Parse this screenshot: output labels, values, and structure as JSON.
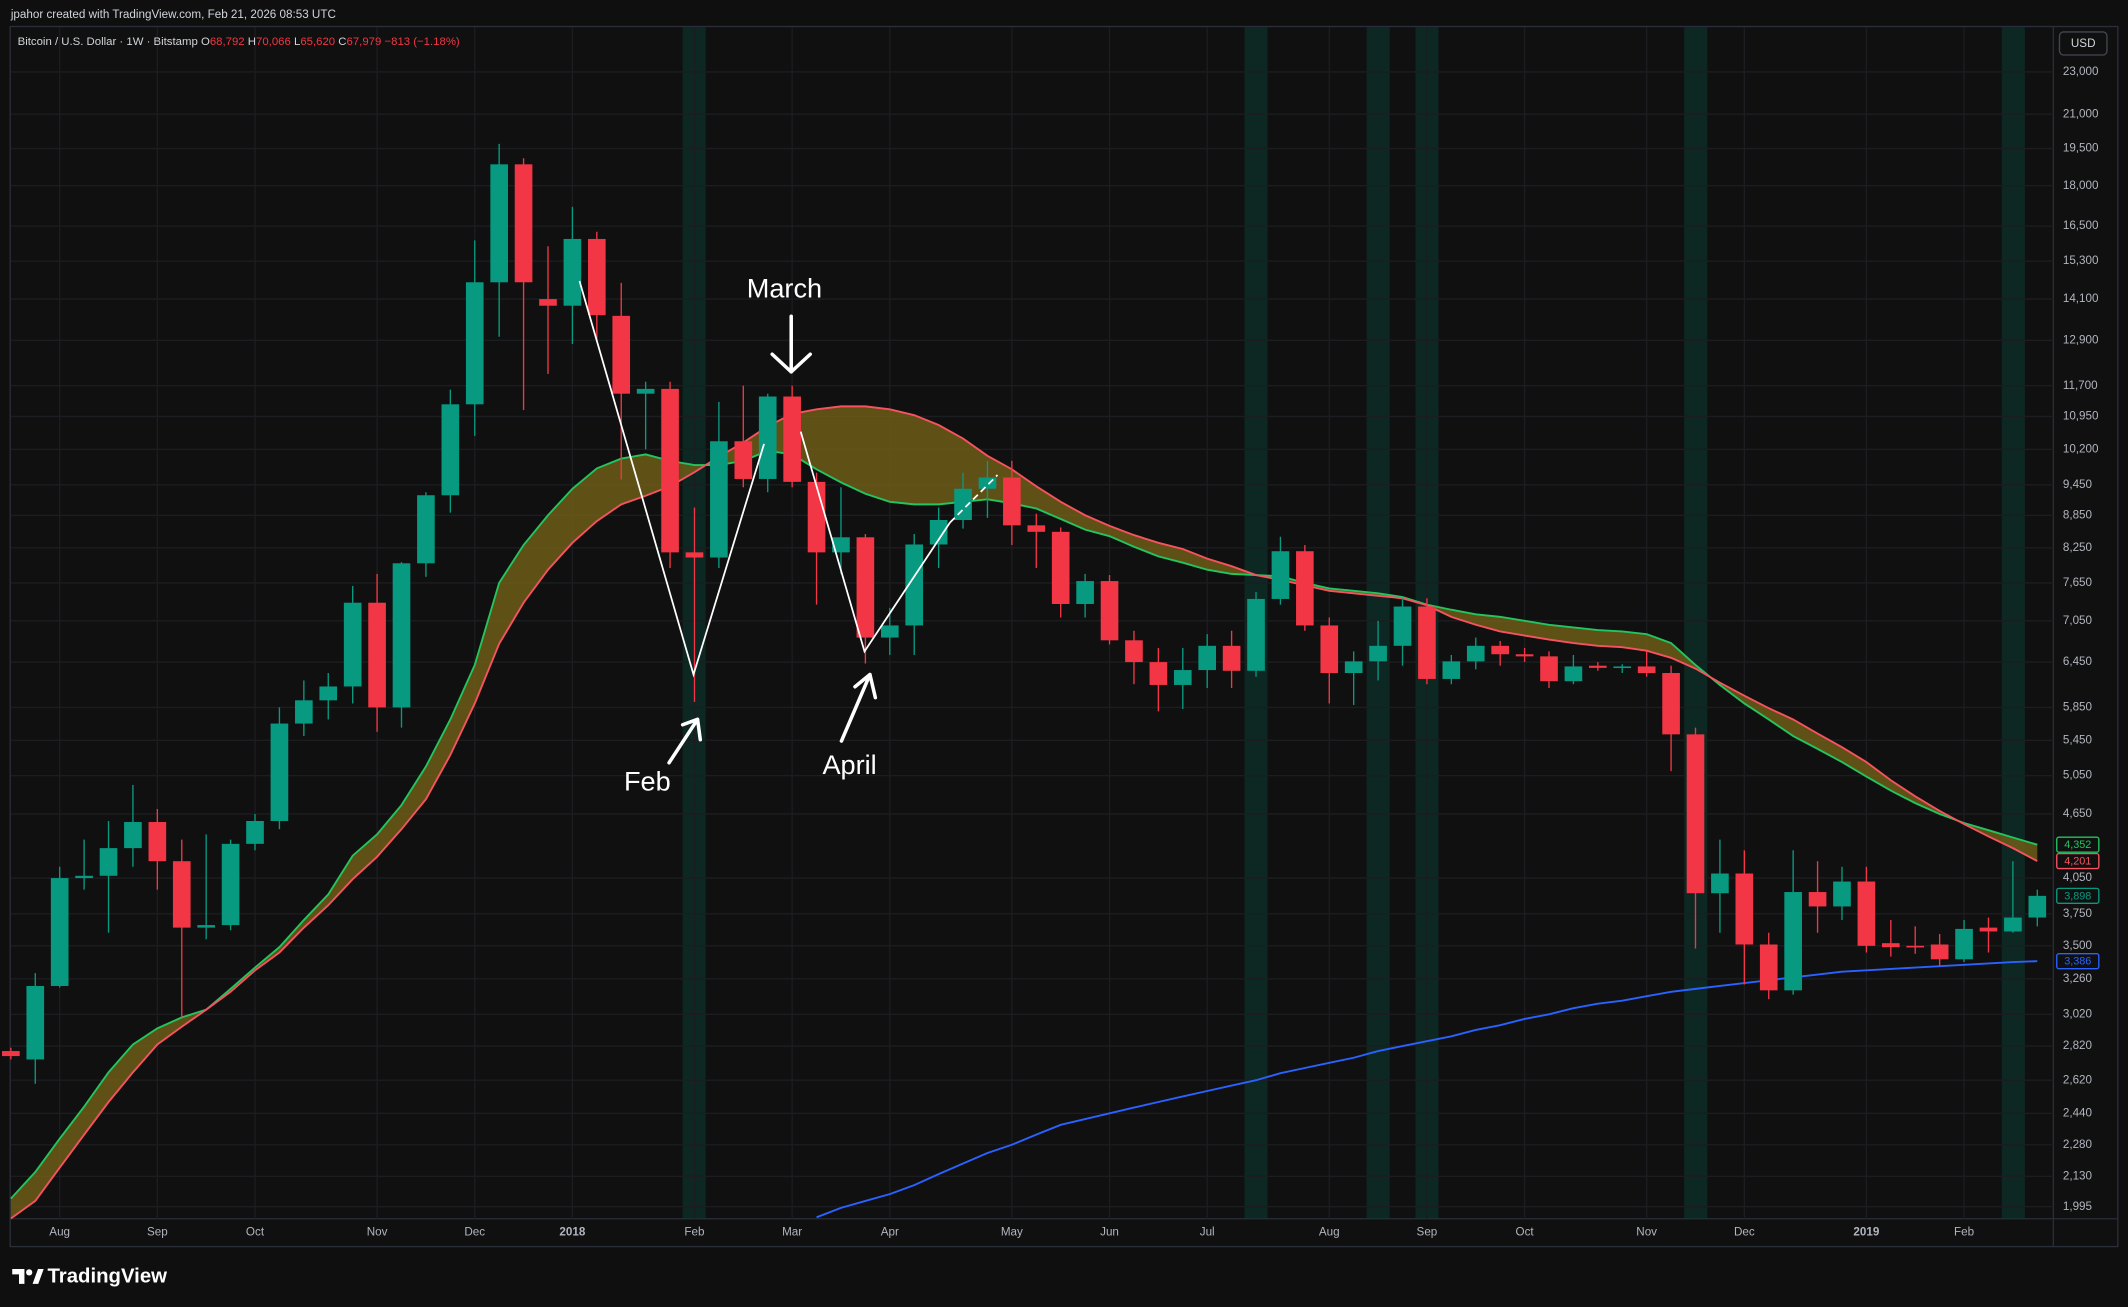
{
  "chart_data": {
    "type": "candlestick",
    "title": "jpahor created with TradingView.com, Feb 21, 2026 08:53 UTC",
    "symbol": "Bitcoin / U.S. Dollar · 1W · Bitstamp",
    "ohlc": [
      [
        "O",
        "68,792"
      ],
      [
        "H",
        "70,066"
      ],
      [
        "L",
        "65,620"
      ],
      [
        "C",
        "67,979"
      ]
    ],
    "change": "−813 (−1.18%)",
    "currency": "USD",
    "brand": "TradingView",
    "annotations": [
      "Feb",
      "March",
      "April"
    ],
    "log_scale": true,
    "grid": true,
    "up_color": "#089981",
    "down_color": "#f23645",
    "band_fill": "#7a6518",
    "ylim": [
      1944,
      25330
    ],
    "yticks": [
      {
        "value": 1995,
        "label": "1,995"
      },
      {
        "value": 2130,
        "label": "2,130"
      },
      {
        "value": 2280,
        "label": "2,280"
      },
      {
        "value": 2440,
        "label": "2,440"
      },
      {
        "value": 2620,
        "label": "2,620"
      },
      {
        "value": 2820,
        "label": "2,820"
      },
      {
        "value": 3020,
        "label": "3,020"
      },
      {
        "value": 3260,
        "label": "3,260"
      },
      {
        "value": 3500,
        "label": "3,500"
      },
      {
        "value": 3750,
        "label": "3,750"
      },
      {
        "value": 4050,
        "label": "4,050"
      },
      {
        "value": 4650,
        "label": "4,650"
      },
      {
        "value": 5050,
        "label": "5,050"
      },
      {
        "value": 5450,
        "label": "5,450"
      },
      {
        "value": 5850,
        "label": "5,850"
      },
      {
        "value": 6450,
        "label": "6,450"
      },
      {
        "value": 7050,
        "label": "7,050"
      },
      {
        "value": 7650,
        "label": "7,650"
      },
      {
        "value": 8250,
        "label": "8,250"
      },
      {
        "value": 8850,
        "label": "8,850"
      },
      {
        "value": 9450,
        "label": "9,450"
      },
      {
        "value": 10200,
        "label": "10,200"
      },
      {
        "value": 10950,
        "label": "10,950"
      },
      {
        "value": 11700,
        "label": "11,700"
      },
      {
        "value": 12900,
        "label": "12,900"
      },
      {
        "value": 14100,
        "label": "14,100"
      },
      {
        "value": 15300,
        "label": "15,300"
      },
      {
        "value": 16500,
        "label": "16,500"
      },
      {
        "value": 18000,
        "label": "18,000"
      },
      {
        "value": 19500,
        "label": "19,500"
      },
      {
        "value": 21000,
        "label": "21,000"
      },
      {
        "value": 23000,
        "label": "23,000"
      }
    ],
    "categories": [
      null,
      null,
      "Aug",
      null,
      null,
      null,
      "Sep",
      null,
      null,
      null,
      "Oct",
      null,
      null,
      null,
      null,
      "Nov",
      null,
      null,
      null,
      "Dec",
      null,
      null,
      null,
      "2018",
      null,
      null,
      null,
      null,
      "Feb",
      null,
      null,
      null,
      "Mar",
      null,
      null,
      null,
      "Apr",
      null,
      null,
      null,
      null,
      "May",
      null,
      null,
      null,
      "Jun",
      null,
      null,
      null,
      "Jul",
      null,
      null,
      null,
      null,
      "Aug",
      null,
      null,
      null,
      "Sep",
      null,
      null,
      null,
      "Oct",
      null,
      null,
      null,
      null,
      "Nov",
      null,
      null,
      null,
      "Dec",
      null,
      null,
      null,
      null,
      "2019",
      null,
      null,
      null,
      "Feb",
      null,
      null,
      null
    ],
    "open": [
      2790,
      2740,
      3210,
      4050,
      4070,
      4320,
      4570,
      4200,
      3640,
      3660,
      4360,
      4580,
      5650,
      5940,
      6120,
      7330,
      5850,
      7980,
      9240,
      11240,
      14620,
      18850,
      14100,
      13900,
      16050,
      13600,
      11500,
      11620,
      8170,
      8080,
      10380,
      9570,
      11430,
      9510,
      8170,
      8440,
      6800,
      6980,
      8310,
      8760,
      9370,
      9600,
      8660,
      8540,
      7310,
      7680,
      6760,
      6450,
      6140,
      6340,
      6680,
      6330,
      7390,
      8190,
      6980,
      6300,
      6460,
      6680,
      7270,
      6220,
      6460,
      6680,
      6560,
      6530,
      6190,
      6400,
      6370,
      6390,
      6300,
      5520,
      3920,
      4090,
      3510,
      3180,
      3930,
      3810,
      4020,
      3520,
      3500,
      3510,
      3400,
      3640,
      3610,
      3720
    ],
    "high": [
      2810,
      3300,
      4150,
      4400,
      4580,
      4950,
      4700,
      4400,
      4450,
      4400,
      4650,
      5850,
      6200,
      6300,
      7600,
      7800,
      8000,
      9300,
      11600,
      16000,
      19700,
      19100,
      15800,
      17200,
      16300,
      14600,
      11800,
      11800,
      9000,
      11300,
      11700,
      11500,
      11700,
      9700,
      9400,
      8500,
      7250,
      8500,
      9000,
      9700,
      9950,
      9950,
      8880,
      8620,
      7800,
      7780,
      6900,
      6650,
      6650,
      6850,
      6900,
      7500,
      8450,
      8300,
      7100,
      6600,
      7050,
      7400,
      7400,
      6550,
      6800,
      6750,
      6650,
      6600,
      6550,
      6450,
      6420,
      6600,
      6400,
      5600,
      4400,
      4300,
      3600,
      4300,
      4200,
      4150,
      4150,
      3700,
      3650,
      3590,
      3700,
      3720,
      4200,
      3950
    ],
    "low": [
      2740,
      2600,
      3200,
      3950,
      3600,
      4150,
      3950,
      3000,
      3550,
      3620,
      4300,
      4500,
      5500,
      5700,
      5900,
      5550,
      5600,
      7750,
      8900,
      10500,
      13000,
      11100,
      12000,
      12800,
      12900,
      9560,
      10200,
      7900,
      5920,
      7900,
      9400,
      9300,
      9400,
      7300,
      7800,
      6430,
      6550,
      6550,
      7900,
      8600,
      8800,
      8300,
      7900,
      7100,
      7100,
      6700,
      6150,
      5800,
      5830,
      6100,
      6100,
      6250,
      7300,
      6900,
      5900,
      5880,
      6200,
      6400,
      6150,
      6150,
      6350,
      6400,
      6450,
      6100,
      6150,
      6330,
      6300,
      6250,
      5100,
      3480,
      3600,
      3220,
      3120,
      3150,
      3600,
      3700,
      3450,
      3420,
      3440,
      3350,
      3380,
      3450,
      3600,
      3650
    ],
    "close": [
      2760,
      3210,
      4050,
      4070,
      4320,
      4570,
      4200,
      3640,
      3660,
      4360,
      4580,
      5650,
      5940,
      6120,
      7330,
      5850,
      7980,
      9240,
      11240,
      14620,
      18850,
      14620,
      13900,
      16050,
      13620,
      11500,
      11620,
      8170,
      8080,
      10380,
      9570,
      11430,
      9510,
      8170,
      8440,
      6800,
      6980,
      8310,
      8760,
      9370,
      9600,
      8660,
      8540,
      7310,
      7680,
      6760,
      6450,
      6140,
      6340,
      6680,
      6330,
      7390,
      8190,
      6980,
      6300,
      6460,
      6680,
      7270,
      6220,
      6460,
      6680,
      6560,
      6530,
      6190,
      6390,
      6370,
      6390,
      6300,
      5520,
      3920,
      4090,
      3510,
      3180,
      3930,
      3810,
      4020,
      3500,
      3490,
      3490,
      3400,
      3630,
      3610,
      3720,
      3898
    ],
    "last_label": "3,898",
    "series": [
      {
        "color": "#22c55e",
        "last_label": "4,352",
        "values": [
          2030,
          2150,
          2310,
          2475,
          2665,
          2830,
          2930,
          3000,
          3050,
          3190,
          3340,
          3490,
          3700,
          3910,
          4250,
          4450,
          4740,
          5150,
          5700,
          6410,
          7650,
          8300,
          8850,
          9370,
          9790,
          10000,
          10090,
          9950,
          9860,
          9860,
          9950,
          10170,
          10090,
          9770,
          9500,
          9270,
          9110,
          9060,
          9060,
          9110,
          9160,
          9080,
          8980,
          8780,
          8580,
          8460,
          8270,
          8100,
          7990,
          7870,
          7800,
          7780,
          7760,
          7650,
          7560,
          7520,
          7480,
          7420,
          7300,
          7220,
          7150,
          7110,
          7050,
          6990,
          6950,
          6910,
          6890,
          6850,
          6720,
          6410,
          6140,
          5900,
          5700,
          5500,
          5350,
          5200,
          5040,
          4890,
          4760,
          4650,
          4560,
          4490,
          4420,
          4352
        ]
      },
      {
        "color": "#f7525f",
        "last_label": "4,201",
        "values": [
          1945,
          2020,
          2170,
          2330,
          2500,
          2665,
          2830,
          2940,
          3050,
          3170,
          3320,
          3450,
          3640,
          3820,
          4040,
          4240,
          4500,
          4800,
          5280,
          5900,
          6710,
          7330,
          7870,
          8340,
          8740,
          9060,
          9230,
          9420,
          9710,
          10040,
          10350,
          10720,
          11010,
          11120,
          11190,
          11190,
          11120,
          10980,
          10750,
          10440,
          10060,
          9770,
          9420,
          9110,
          8850,
          8650,
          8480,
          8340,
          8230,
          8060,
          7930,
          7780,
          7700,
          7610,
          7520,
          7480,
          7440,
          7400,
          7290,
          7110,
          6990,
          6890,
          6830,
          6770,
          6720,
          6680,
          6660,
          6610,
          6510,
          6360,
          6170,
          6000,
          5840,
          5700,
          5530,
          5370,
          5200,
          5000,
          4830,
          4680,
          4550,
          4430,
          4320,
          4201
        ]
      },
      {
        "color": "#2962ff",
        "last_label": "3,386",
        "values": [
          null,
          null,
          null,
          null,
          null,
          null,
          null,
          null,
          null,
          null,
          null,
          null,
          null,
          null,
          null,
          null,
          null,
          null,
          null,
          null,
          null,
          null,
          null,
          null,
          null,
          null,
          null,
          null,
          null,
          null,
          null,
          null,
          null,
          1950,
          1990,
          2020,
          2050,
          2090,
          2140,
          2190,
          2240,
          2280,
          2330,
          2380,
          2410,
          2440,
          2470,
          2500,
          2530,
          2560,
          2590,
          2620,
          2660,
          2690,
          2720,
          2750,
          2790,
          2820,
          2850,
          2880,
          2920,
          2950,
          2990,
          3020,
          3060,
          3090,
          3110,
          3140,
          3170,
          3190,
          3210,
          3230,
          3250,
          3270,
          3290,
          3310,
          3320,
          3330,
          3340,
          3350,
          3360,
          3370,
          3380,
          3386
        ]
      }
    ]
  }
}
